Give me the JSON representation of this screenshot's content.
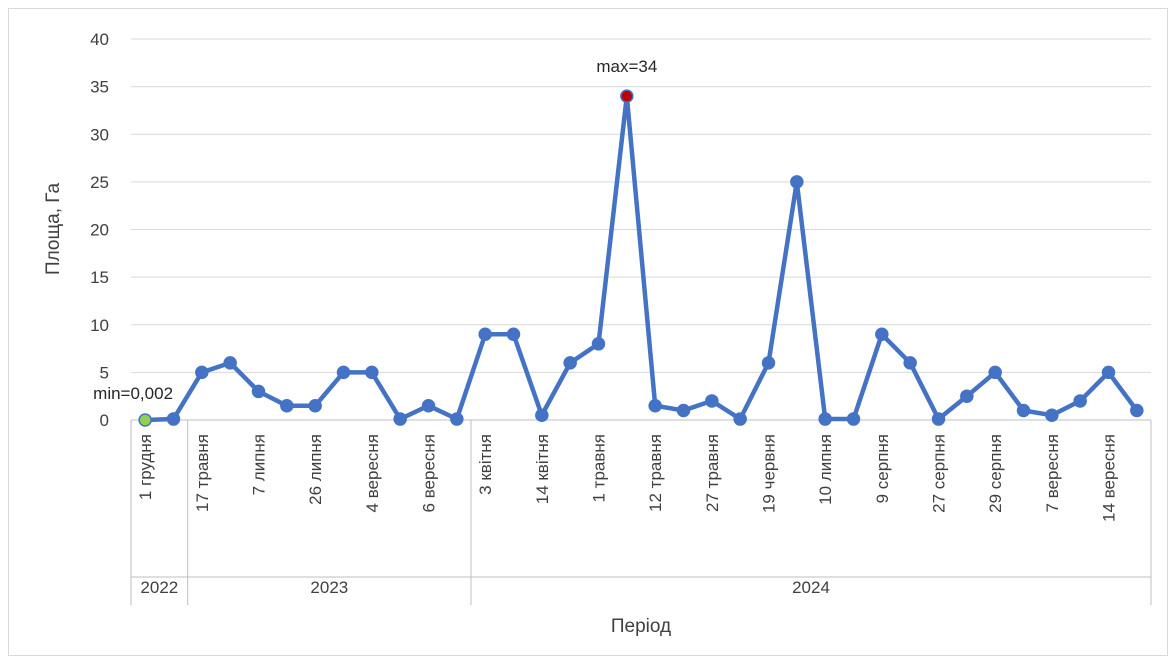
{
  "chart_data": {
    "type": "line",
    "xlabel": "Період",
    "ylabel": "Площа, Га",
    "ylim": [
      0,
      40
    ],
    "yticks": [
      0,
      5,
      10,
      15,
      20,
      25,
      30,
      35,
      40
    ],
    "grid": true,
    "legend": "none",
    "line_color": "#4472C4",
    "min_marker_color": "#92D050",
    "max_marker_color": "#C00000",
    "annotations": {
      "min": "min=0,002",
      "max": "max=34"
    },
    "min_index": 0,
    "max_index": 17,
    "years": [
      {
        "label": "2022",
        "start": 0,
        "end": 1
      },
      {
        "label": "2023",
        "start": 2,
        "end": 11
      },
      {
        "label": "2024",
        "start": 12,
        "end": 35
      }
    ],
    "categories": [
      "1 грудня",
      "",
      "17 травня",
      "",
      "7 липня",
      "",
      "26 липня",
      "",
      "4 вересня",
      "",
      "6 вересня",
      "",
      "3 квітня",
      "",
      "14 квітня",
      "",
      "1 травня",
      "",
      "12 травня",
      "",
      "27 травня",
      "",
      "19 червня",
      "",
      "10 липня",
      "",
      "9 серпня",
      "",
      "27 серпня",
      "",
      "29 серпня",
      "",
      "7 вересня",
      "",
      "14 вересня",
      ""
    ],
    "values": [
      0.002,
      0.1,
      5,
      6,
      3,
      1.5,
      1.5,
      5,
      5,
      0.1,
      1.5,
      0.1,
      9,
      9,
      0.5,
      6,
      8,
      34,
      1.5,
      1,
      2,
      0.1,
      6,
      25,
      0.1,
      0.1,
      9,
      6,
      0.1,
      2.5,
      5,
      1,
      0.5,
      2,
      5,
      1
    ]
  }
}
